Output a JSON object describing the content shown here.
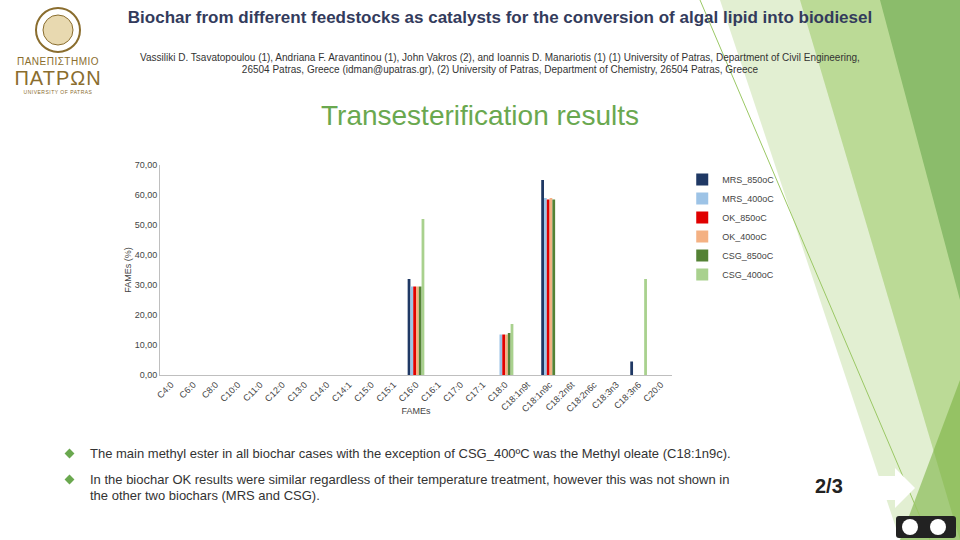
{
  "logo": {
    "line1": "ΠΑΝΕΠΙΣΤΗΜΙΟ",
    "line2": "ΠΑΤΡΩΝ",
    "line3": "UNIVERSITY OF PATRAS"
  },
  "header": {
    "title": "Biochar from different feedstocks as catalysts for the conversion of algal lipid into biodiesel",
    "authors": "Vassiliki D. Tsavatopoulou (1), Andriana F. Aravantinou (1), John Vakros (2), and Ioannis D. Manariotis (1) (1) University of Patras, Department of Civil Engineering, 26504 Patras, Greece (idman@upatras.gr), (2) University of Patras, Department of Chemistry, 26504 Patras, Greece"
  },
  "section_title": "Transesterification results",
  "bullets": [
    "The main methyl ester in all biochar cases with the exception of CSG_400ºC was the Methyl oleate (C18:1n9c).",
    "In the biochar OK results were similar regardless of their temperature treatment, however this was not shown in the other two biochars (MRS and CSG)."
  ],
  "page": "2/3",
  "chart_data": {
    "type": "bar",
    "x_label": "FAMEs",
    "y_label": "FAMEs (%)",
    "categories": [
      "C4:0",
      "C6:0",
      "C8:0",
      "C10:0",
      "C11:0",
      "C12:0",
      "C13:0",
      "C14:0",
      "C14:1",
      "C15:0",
      "C15:1",
      "C16:0",
      "C16:1",
      "C17:0",
      "C17:1",
      "C18:0",
      "C18:1n9t",
      "C18:1n9c",
      "C18:2n6t",
      "C18:2n6c",
      "C18:3n3",
      "C18:3n6",
      "C20:0"
    ],
    "series": [
      {
        "name": "MRS_850oC",
        "color": "#1f3864",
        "values": [
          0,
          0,
          0,
          0,
          0,
          0,
          0,
          0,
          0,
          0,
          0,
          32,
          0,
          0,
          0,
          0,
          0,
          65,
          0,
          0,
          0,
          4.5,
          0
        ]
      },
      {
        "name": "MRS_400oC",
        "color": "#9dc3e6",
        "values": [
          0,
          0,
          0,
          0,
          0,
          0,
          0,
          0,
          0,
          0,
          0,
          29.5,
          0,
          0,
          0,
          13.5,
          0,
          59,
          0,
          0,
          0,
          0,
          0
        ]
      },
      {
        "name": "OK_850oC",
        "color": "#e00000",
        "values": [
          0,
          0,
          0,
          0,
          0,
          0,
          0,
          0,
          0,
          0,
          0,
          29.5,
          0,
          0,
          0,
          13.5,
          0,
          58.5,
          0,
          0,
          0,
          0,
          0
        ]
      },
      {
        "name": "OK_400oC",
        "color": "#f4b183",
        "values": [
          0,
          0,
          0,
          0,
          0,
          0,
          0,
          0,
          0,
          0,
          0,
          29.5,
          0,
          0,
          0,
          13.5,
          0,
          59,
          0,
          0,
          0,
          0,
          0
        ]
      },
      {
        "name": "CSG_850oC",
        "color": "#548235",
        "values": [
          0,
          0,
          0,
          0,
          0,
          0,
          0,
          0,
          0,
          0,
          0,
          29.5,
          0,
          0,
          0,
          14,
          0,
          58.5,
          0,
          0,
          0,
          0,
          0
        ]
      },
      {
        "name": "CSG_400oC",
        "color": "#a9d18e",
        "values": [
          0,
          0,
          0,
          0,
          0,
          0,
          0,
          0,
          0,
          0,
          0,
          52,
          0,
          0,
          0,
          17,
          0,
          0,
          0,
          0,
          0,
          32,
          0
        ]
      }
    ],
    "ylim": [
      0,
      70
    ],
    "yticks": [
      {
        "value": 0,
        "label": "0,00"
      },
      {
        "value": 10,
        "label": "10,00"
      },
      {
        "value": 20,
        "label": "20,00"
      },
      {
        "value": 30,
        "label": "30,00"
      },
      {
        "value": 40,
        "label": "40,00"
      },
      {
        "value": 50,
        "label": "50,00"
      },
      {
        "value": 60,
        "label": "60,00"
      },
      {
        "value": 70,
        "label": "70,00"
      }
    ],
    "grid": false,
    "legend": "top right"
  }
}
